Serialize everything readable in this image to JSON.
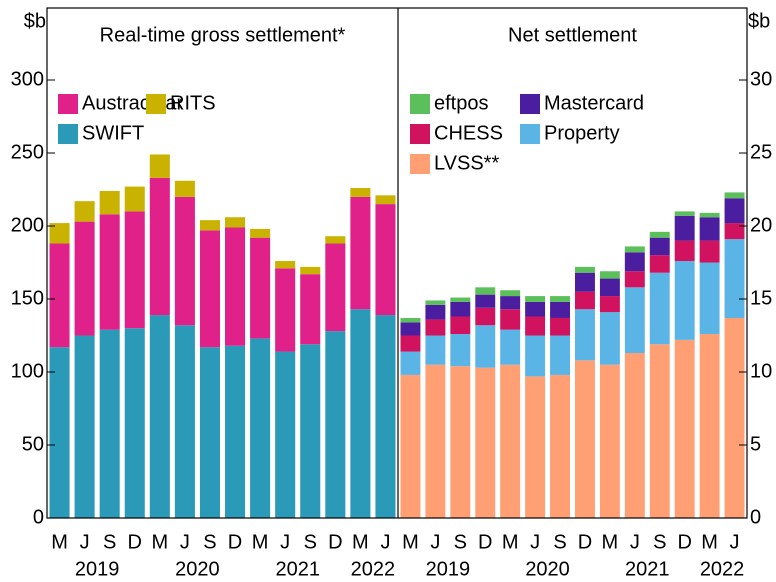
{
  "chart_data": [
    {
      "type": "bar",
      "stacked": true,
      "title": "Real-time gross settlement*",
      "y_label": "$b",
      "y_axis_side": "left",
      "categories": [
        "M",
        "J",
        "S",
        "D",
        "M",
        "J",
        "S",
        "D",
        "M",
        "J",
        "S",
        "D",
        "M",
        "J"
      ],
      "years": [
        "2019",
        "2020",
        "2021",
        "2022"
      ],
      "ylim": [
        0,
        300
      ],
      "yticks": [
        0,
        50,
        100,
        150,
        200,
        250,
        300
      ],
      "series": [
        {
          "name": "SWIFT",
          "color": "#2b9ab8",
          "values": [
            117,
            125,
            129,
            130,
            139,
            132,
            117,
            118,
            123,
            114,
            119,
            128,
            143,
            139
          ]
        },
        {
          "name": "Austraclear",
          "color": "#e0218a",
          "values": [
            71,
            78,
            79,
            80,
            94,
            88,
            80,
            81,
            69,
            57,
            48,
            60,
            77,
            76
          ]
        },
        {
          "name": "RITS",
          "color": "#c9b200",
          "values": [
            14,
            14,
            16,
            17,
            16,
            11,
            7,
            7,
            6,
            5,
            5,
            5,
            6,
            6
          ]
        }
      ]
    },
    {
      "type": "bar",
      "stacked": true,
      "title": "Net settlement",
      "y_label": "$b",
      "y_axis_side": "right",
      "categories": [
        "M",
        "J",
        "S",
        "D",
        "M",
        "J",
        "S",
        "D",
        "M",
        "J",
        "S",
        "D",
        "M",
        "J"
      ],
      "years": [
        "2019",
        "2020",
        "2021",
        "2022"
      ],
      "ylim": [
        0,
        30
      ],
      "yticks": [
        0,
        5,
        10,
        15,
        20,
        25,
        30
      ],
      "series": [
        {
          "name": "LVSS**",
          "color": "#ff9f73",
          "values": [
            9.8,
            10.5,
            10.4,
            10.3,
            10.5,
            9.7,
            9.8,
            10.8,
            10.5,
            11.3,
            11.9,
            12.2,
            12.6,
            13.7
          ]
        },
        {
          "name": "Property",
          "color": "#5ab4e5",
          "values": [
            1.6,
            2.0,
            2.2,
            2.9,
            2.4,
            2.8,
            2.7,
            3.5,
            3.6,
            4.5,
            4.9,
            5.4,
            4.9,
            5.4
          ]
        },
        {
          "name": "CHESS",
          "color": "#d0125f",
          "values": [
            1.1,
            1.1,
            1.2,
            1.2,
            1.4,
            1.3,
            1.2,
            1.2,
            1.1,
            1.1,
            1.2,
            1.4,
            1.5,
            1.1
          ]
        },
        {
          "name": "Mastercard",
          "color": "#4b1ea0",
          "values": [
            0.9,
            1.0,
            1.0,
            0.9,
            0.9,
            1.0,
            1.1,
            1.3,
            1.2,
            1.3,
            1.2,
            1.7,
            1.6,
            1.7
          ]
        },
        {
          "name": "eftpos",
          "color": "#5bbf5b",
          "values": [
            0.3,
            0.3,
            0.3,
            0.5,
            0.4,
            0.4,
            0.4,
            0.4,
            0.5,
            0.4,
            0.4,
            0.3,
            0.3,
            0.4
          ]
        }
      ]
    }
  ]
}
